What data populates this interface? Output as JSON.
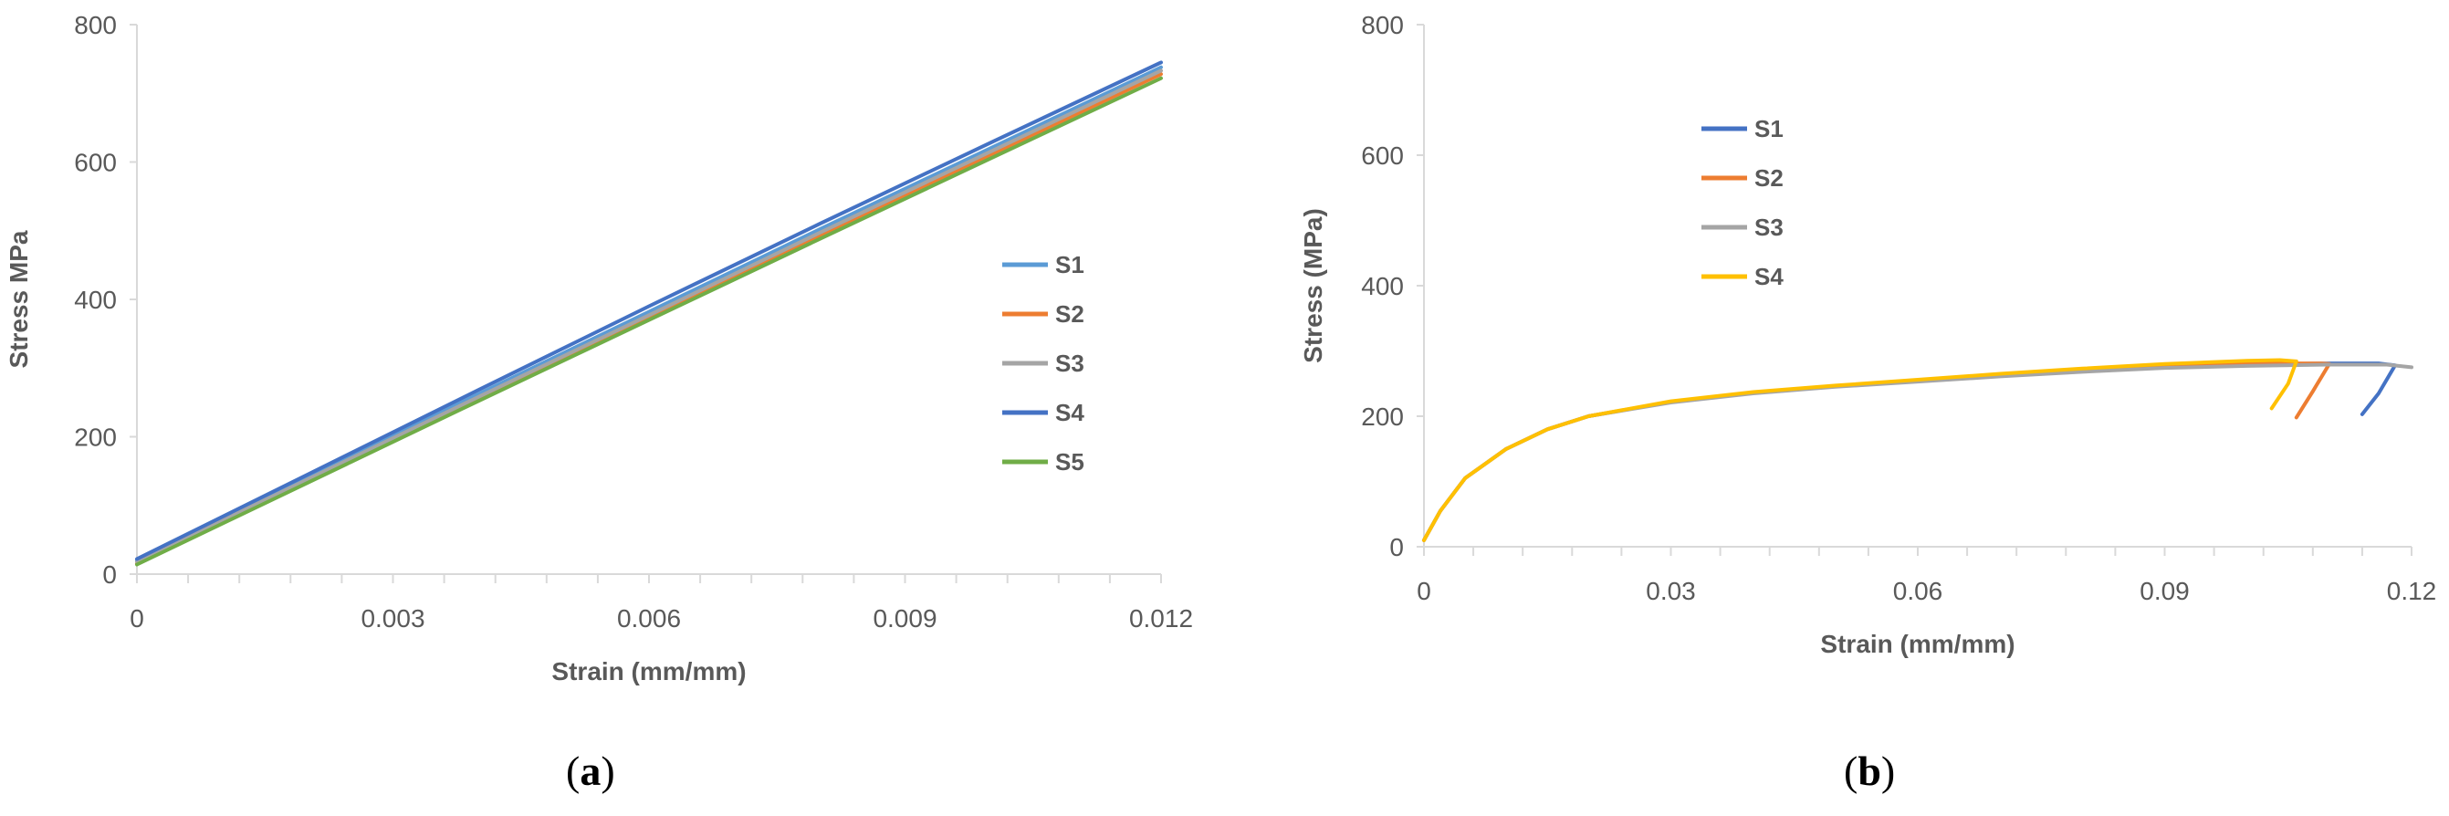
{
  "chart_data": [
    {
      "type": "line",
      "xlabel": "Strain (mm/mm)",
      "ylabel": "Stress MPa",
      "xlim": [
        0,
        0.012
      ],
      "ylim": [
        0,
        800
      ],
      "xticks": [
        "0",
        "0.003",
        "0.006",
        "0.009",
        "0.012"
      ],
      "yticks": [
        "0",
        "200",
        "400",
        "600",
        "800"
      ],
      "grid": false,
      "legend_position": "right",
      "series": [
        {
          "name": "S1",
          "color": "#5b9bd5",
          "x": [
            0,
            0.002,
            0.004,
            0.006,
            0.008,
            0.01,
            0.012
          ],
          "y": [
            20,
            140,
            262,
            382,
            502,
            620,
            738
          ]
        },
        {
          "name": "S2",
          "color": "#ed7d31",
          "x": [
            0,
            0.002,
            0.004,
            0.006,
            0.008,
            0.01,
            0.012
          ],
          "y": [
            15,
            135,
            255,
            373,
            492,
            610,
            728
          ]
        },
        {
          "name": "S3",
          "color": "#a5a5a5",
          "x": [
            0,
            0.002,
            0.004,
            0.006,
            0.008,
            0.01,
            0.012
          ],
          "y": [
            18,
            138,
            258,
            377,
            497,
            615,
            733
          ]
        },
        {
          "name": "S4",
          "color": "#4472c4",
          "x": [
            0,
            0.002,
            0.004,
            0.006,
            0.008,
            0.01,
            0.012
          ],
          "y": [
            22,
            145,
            268,
            390,
            510,
            628,
            745
          ]
        },
        {
          "name": "S5",
          "color": "#70ad47",
          "x": [
            0,
            0.002,
            0.004,
            0.006,
            0.008,
            0.01,
            0.012
          ],
          "y": [
            14,
            133,
            252,
            370,
            488,
            605,
            722
          ]
        }
      ]
    },
    {
      "type": "line",
      "xlabel": "Strain (mm/mm)",
      "ylabel": "Stress (MPa)",
      "xlim": [
        0,
        0.12
      ],
      "ylim": [
        0,
        800
      ],
      "xticks": [
        "0",
        "0.03",
        "0.06",
        "0.09",
        "0.12"
      ],
      "yticks": [
        "0",
        "200",
        "400",
        "600",
        "800"
      ],
      "grid": false,
      "legend_position": "upper-left",
      "series": [
        {
          "name": "S1",
          "color": "#4472c4",
          "x": [
            0,
            0.002,
            0.005,
            0.01,
            0.015,
            0.02,
            0.03,
            0.04,
            0.05,
            0.06,
            0.07,
            0.08,
            0.09,
            0.1,
            0.11,
            0.116,
            0.118,
            0.116,
            0.114
          ],
          "y": [
            10,
            55,
            105,
            150,
            180,
            200,
            222,
            236,
            246,
            254,
            262,
            270,
            276,
            279,
            281,
            281,
            278,
            235,
            203
          ]
        },
        {
          "name": "S2",
          "color": "#ed7d31",
          "x": [
            0,
            0.002,
            0.005,
            0.01,
            0.015,
            0.02,
            0.03,
            0.04,
            0.05,
            0.06,
            0.07,
            0.08,
            0.09,
            0.1,
            0.106,
            0.109,
            0.11,
            0.108,
            0.106
          ],
          "y": [
            10,
            55,
            105,
            150,
            180,
            200,
            222,
            236,
            246,
            254,
            262,
            270,
            277,
            280,
            281,
            281,
            280,
            238,
            198
          ]
        },
        {
          "name": "S3",
          "color": "#a5a5a5",
          "x": [
            0,
            0.002,
            0.005,
            0.01,
            0.015,
            0.02,
            0.03,
            0.04,
            0.05,
            0.06,
            0.07,
            0.08,
            0.09,
            0.1,
            0.11,
            0.117,
            0.12
          ],
          "y": [
            10,
            55,
            105,
            150,
            180,
            200,
            221,
            235,
            245,
            253,
            261,
            268,
            274,
            277,
            279,
            279,
            275
          ]
        },
        {
          "name": "S4",
          "color": "#ffc000",
          "x": [
            0,
            0.002,
            0.005,
            0.01,
            0.015,
            0.02,
            0.03,
            0.04,
            0.05,
            0.06,
            0.07,
            0.08,
            0.09,
            0.1,
            0.104,
            0.106,
            0.105,
            0.103
          ],
          "y": [
            10,
            55,
            105,
            150,
            180,
            200,
            223,
            237,
            247,
            256,
            265,
            273,
            280,
            285,
            286,
            284,
            250,
            212
          ]
        }
      ]
    }
  ],
  "captions": {
    "a": "a",
    "b": "b"
  }
}
